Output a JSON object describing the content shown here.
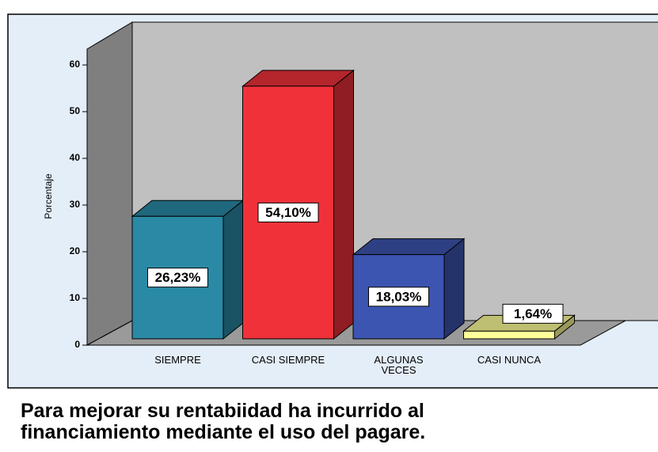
{
  "chart_data": {
    "type": "bar3d",
    "title": "Para mejorar su rentabiidad ha incurrido al financiamiento mediante el uso del pagare.",
    "y_label": "Porcentaje",
    "categories": [
      "SIEMPRE",
      "CASI SIEMPRE",
      "ALGUNAS VECES",
      "CASI NUNCA"
    ],
    "values": [
      26.23,
      54.1,
      18.03,
      1.64
    ],
    "value_labels": [
      "26,23%",
      "54,10%",
      "18,03%",
      "1,64%"
    ],
    "colors": [
      "#2a8aa6",
      "#f0313a",
      "#3c55b0",
      "#ffff99"
    ],
    "ylim": [
      0,
      63.4
    ],
    "yticks": [
      0,
      10,
      20,
      30,
      40,
      50,
      60
    ]
  }
}
